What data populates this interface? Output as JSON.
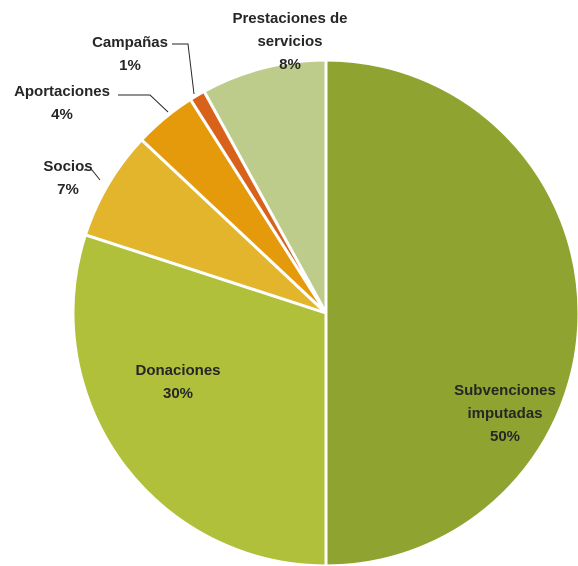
{
  "chart_data": {
    "type": "pie",
    "categories": [
      "Subvenciones imputadas",
      "Donaciones",
      "Socios",
      "Aportaciones",
      "Campañas",
      "Prestaciones de servicios"
    ],
    "values": [
      50,
      30,
      7,
      4,
      1,
      8
    ],
    "value_labels": [
      "50%",
      "30%",
      "7%",
      "4%",
      "1%",
      "8%"
    ],
    "colors": [
      "#8fa331",
      "#b0c03a",
      "#e3b52c",
      "#e59a0c",
      "#d9621a",
      "#bdcb8b"
    ],
    "start_angle": 0,
    "direction": "clockwise"
  }
}
